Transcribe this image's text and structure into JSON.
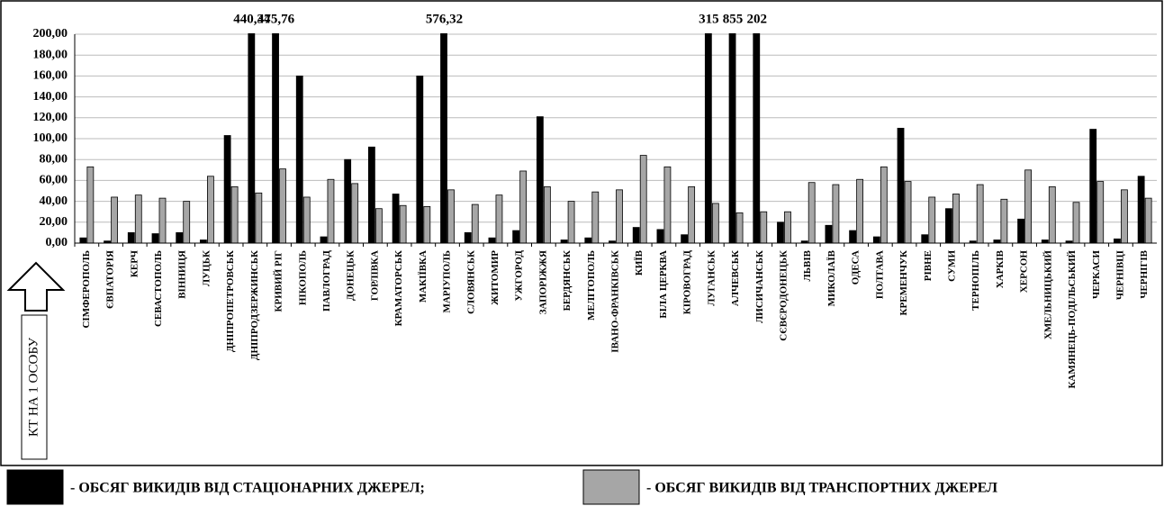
{
  "chart_data": {
    "type": "bar",
    "y_label": "КТ НА 1 ОСОБУ",
    "categories": [
      "СІМФЕРОПОЛЬ",
      "ЄВПАТОРІЯ",
      "КЕРЧ",
      "СЕВАСТОПОЛЬ",
      "ВІННИЦЯ",
      "ЛУЦЬК",
      "ДНІПРОПЕТРОВСЬК",
      "ДНІПРОДЗЕРЖИНСЬК",
      "КРИВИЙ РІГ",
      "НІКОПОЛЬ",
      "ПАВЛОГРАД",
      "ДОНЕЦЬК",
      "ГОРЛІВКА",
      "КРАМАТОРСЬК",
      "МАКІЇВКА",
      "МАРІУПОЛЬ",
      "СЛОВЯНСЬК",
      "ЖИТОМИР",
      "УЖГОРОД",
      "ЗАПОРІЖЖЯ",
      "БЕРДЯНСЬК",
      "МЕЛІТОПОЛЬ",
      "ІВАНО-ФРАНКІВСЬК",
      "КИЇВ",
      "БІЛА ЦЕРКВА",
      "КІРОВОГРАД",
      "ЛУГАНСЬК",
      "АЛЧЕВСЬК",
      "ЛИСИЧАНСЬК",
      "СЄВЄРОДОНЕЦЬК",
      "ЛЬВІВ",
      "МИКОЛАЇВ",
      "ОДЕСА",
      "ПОЛТАВА",
      "КРЕМЕНЧУК",
      "РІВНЕ",
      "СУМИ",
      "ТЕРНОПІЛЬ",
      "ХАРКІВ",
      "ХЕРСОН",
      "ХМЕЛЬНИЦЬКИЙ",
      "КАМЯНЕЦЬ-ПОДІЛЬСЬКИЙ",
      "ЧЕРКАСИ",
      "ЧЕРНІВЦІ",
      "ЧЕРНІГІВ"
    ],
    "series": [
      {
        "name": "- ОБСЯГ ВИКИДІВ ВІД СТАЦІОНАРНИХ ДЖЕРЕЛ;",
        "color": "#000000",
        "values": [
          5,
          2,
          10,
          9,
          10,
          3,
          103,
          440.34,
          475.76,
          160,
          6,
          80,
          92,
          47,
          160,
          576.32,
          10,
          5,
          12,
          121,
          3,
          5,
          2,
          15,
          13,
          8,
          315,
          855,
          202,
          20,
          2,
          17,
          12,
          6,
          110,
          8,
          33,
          2,
          3,
          23,
          3,
          2,
          109,
          4,
          64
        ],
        "value_labels": [
          null,
          null,
          null,
          null,
          null,
          null,
          null,
          "440,34",
          "475,76",
          null,
          null,
          null,
          null,
          null,
          null,
          "576,32",
          null,
          null,
          null,
          null,
          null,
          null,
          null,
          null,
          null,
          null,
          "315",
          "855",
          "202",
          null,
          null,
          null,
          null,
          null,
          null,
          null,
          null,
          null,
          null,
          null,
          null,
          null,
          null,
          null,
          null
        ]
      },
      {
        "name": "- ОБСЯГ ВИКИДІВ ВІД ТРАНСПОРТНИХ ДЖЕРЕЛ",
        "color": "#a6a6a6",
        "values": [
          73,
          44,
          46,
          43,
          40,
          64,
          54,
          48,
          71,
          44,
          61,
          57,
          33,
          36,
          35,
          51,
          37,
          46,
          69,
          54,
          40,
          49,
          51,
          84,
          73,
          54,
          38,
          29,
          30,
          30,
          58,
          56,
          61,
          73,
          59,
          44,
          47,
          56,
          42,
          70,
          54,
          39,
          59,
          51,
          43
        ]
      }
    ],
    "ylim": [
      0,
      200
    ],
    "yticks": [
      {
        "value": 0,
        "label": "0,00"
      },
      {
        "value": 20,
        "label": "20,00"
      },
      {
        "value": 40,
        "label": "40,00"
      },
      {
        "value": 60,
        "label": "60,00"
      },
      {
        "value": 80,
        "label": "80,00"
      },
      {
        "value": 100,
        "label": "100,00"
      },
      {
        "value": 120,
        "label": "120,00"
      },
      {
        "value": 140,
        "label": "140,00"
      },
      {
        "value": 160,
        "label": "160,00"
      },
      {
        "value": 180,
        "label": "180,00"
      },
      {
        "value": 200,
        "label": "200,00"
      }
    ],
    "grid": true
  }
}
